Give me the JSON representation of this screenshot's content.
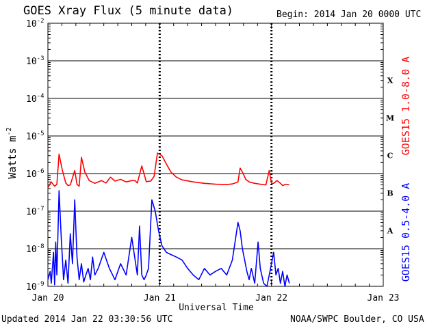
{
  "header": {
    "title": "GOES Xray Flux (5 minute data)",
    "begin": "Begin:  2014 Jan 20 0000 UTC"
  },
  "footer": {
    "updated": "Updated 2014 Jan 22 03:30:56 UTC",
    "credit": "NOAA/SWPC Boulder, CO USA"
  },
  "colors": {
    "long": "#ff0000",
    "short": "#0000ff",
    "frame": "#000000"
  },
  "chart_data": {
    "type": "line",
    "xlabel": "Universal Time",
    "ylabel_base": "Watts m",
    "ylabel_exp": "-2",
    "xlim_days": [
      0,
      3
    ],
    "x_ticks": [
      {
        "day": 0,
        "label": "Jan 20"
      },
      {
        "day": 1,
        "label": "Jan 21"
      },
      {
        "day": 2,
        "label": "Jan 22"
      },
      {
        "day": 3,
        "label": "Jan 23"
      }
    ],
    "y_scale": "log",
    "ylim_exp": [
      -9,
      -2
    ],
    "y_ticks": [
      {
        "exp": -2,
        "base": "10",
        "sup": "-2"
      },
      {
        "exp": -3,
        "base": "10",
        "sup": "-3"
      },
      {
        "exp": -4,
        "base": "10",
        "sup": "-4"
      },
      {
        "exp": -5,
        "base": "10",
        "sup": "-5"
      },
      {
        "exp": -6,
        "base": "10",
        "sup": "-6"
      },
      {
        "exp": -7,
        "base": "10",
        "sup": "-7"
      },
      {
        "exp": -8,
        "base": "10",
        "sup": "-8"
      },
      {
        "exp": -9,
        "base": "10",
        "sup": "-9"
      }
    ],
    "flare_classes": [
      {
        "label": "X",
        "exp": -4
      },
      {
        "label": "M",
        "exp": -5
      },
      {
        "label": "C",
        "exp": -6
      },
      {
        "label": "B",
        "exp": -7
      },
      {
        "label": "A",
        "exp": -8
      }
    ],
    "grid": true,
    "series": [
      {
        "name": "GOES15 1.0-8.0 A",
        "day": [
          0,
          0.03,
          0.06,
          0.08,
          0.1,
          0.13,
          0.16,
          0.18,
          0.2,
          0.24,
          0.26,
          0.28,
          0.3,
          0.33,
          0.37,
          0.42,
          0.48,
          0.52,
          0.56,
          0.6,
          0.65,
          0.7,
          0.75,
          0.78,
          0.8,
          0.84,
          0.88,
          0.92,
          0.95,
          0.98,
          1.02,
          1.06,
          1.1,
          1.15,
          1.2,
          1.3,
          1.4,
          1.5,
          1.6,
          1.65,
          1.7,
          1.72,
          1.74,
          1.77,
          1.8,
          1.85,
          1.9,
          1.95,
          1.98,
          2.0,
          2.02,
          2.05,
          2.08,
          2.1,
          2.13,
          2.16
        ],
        "value": [
          4.2e-07,
          6e-07,
          4.6e-07,
          5.2e-07,
          3.3e-06,
          1.2e-06,
          5.6e-07,
          4.8e-07,
          5e-07,
          1.2e-06,
          5.2e-07,
          4.6e-07,
          2.7e-06,
          1.1e-06,
          6.5e-07,
          5.5e-07,
          6.5e-07,
          5.6e-07,
          8e-07,
          6.3e-07,
          7e-07,
          6e-07,
          6.5e-07,
          6.5e-07,
          5.6e-07,
          1.6e-06,
          6.1e-07,
          6.3e-07,
          8.5e-07,
          3.5e-06,
          3e-06,
          1.8e-06,
          1.1e-06,
          8e-07,
          6.8e-07,
          6e-07,
          5.5e-07,
          5.2e-07,
          5.1e-07,
          5.3e-07,
          6e-07,
          1.4e-06,
          1.1e-06,
          7e-07,
          6e-07,
          5.5e-07,
          5.2e-07,
          5e-07,
          1.2e-06,
          5.5e-07,
          5.5e-07,
          6.5e-07,
          5.5e-07,
          4.8e-07,
          5.2e-07,
          5e-07
        ]
      },
      {
        "name": "GOES15 0.5-4.0 A",
        "day": [
          0,
          0.02,
          0.03,
          0.05,
          0.06,
          0.07,
          0.08,
          0.1,
          0.12,
          0.14,
          0.16,
          0.18,
          0.2,
          0.22,
          0.24,
          0.26,
          0.28,
          0.3,
          0.32,
          0.34,
          0.36,
          0.38,
          0.4,
          0.42,
          0.45,
          0.5,
          0.55,
          0.6,
          0.65,
          0.7,
          0.75,
          0.8,
          0.82,
          0.84,
          0.86,
          0.88,
          0.9,
          0.93,
          0.96,
          0.99,
          1.02,
          1.06,
          1.1,
          1.15,
          1.2,
          1.25,
          1.3,
          1.35,
          1.4,
          1.45,
          1.5,
          1.55,
          1.6,
          1.65,
          1.7,
          1.72,
          1.74,
          1.76,
          1.78,
          1.8,
          1.82,
          1.85,
          1.88,
          1.9,
          1.93,
          1.96,
          2.0,
          2.02,
          2.04,
          2.06,
          2.08,
          2.1,
          2.12,
          2.14,
          2.16
        ],
        "value": [
          1.5e-09,
          2.5e-09,
          1.2e-09,
          8e-09,
          1.1e-09,
          1.5e-08,
          2e-09,
          3.5e-07,
          1.8e-08,
          1.5e-09,
          5e-09,
          1.2e-09,
          2.5e-08,
          4e-09,
          2e-07,
          6e-09,
          1.5e-09,
          4e-09,
          1.3e-09,
          2e-09,
          3e-09,
          1.5e-09,
          6e-09,
          2e-09,
          3e-09,
          8e-09,
          3e-09,
          1.5e-09,
          4e-09,
          2e-09,
          2e-08,
          2e-09,
          4e-08,
          2e-09,
          1.5e-09,
          2e-09,
          3e-09,
          2e-07,
          1e-07,
          3e-08,
          1.2e-08,
          8e-09,
          7e-09,
          6e-09,
          5e-09,
          3e-09,
          2e-09,
          1.5e-09,
          3e-09,
          2e-09,
          2.5e-09,
          3e-09,
          2e-09,
          5e-09,
          5e-08,
          3e-08,
          1e-08,
          5e-09,
          2.5e-09,
          1.5e-09,
          3e-09,
          1.2e-09,
          1.5e-08,
          3e-09,
          1.2e-09,
          1e-09,
          4e-09,
          8e-09,
          2e-09,
          3e-09,
          1.2e-09,
          2.5e-09,
          1e-09,
          2e-09,
          1.2e-09
        ]
      }
    ]
  }
}
